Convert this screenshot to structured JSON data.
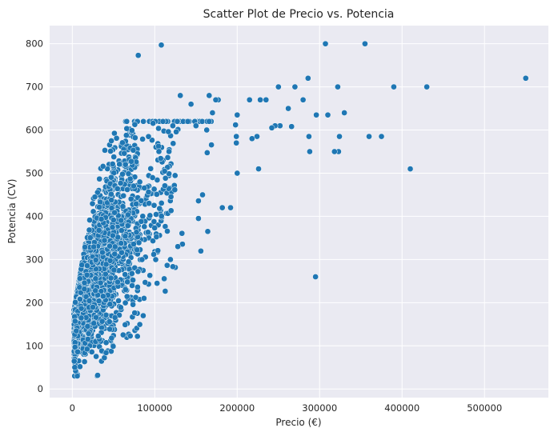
{
  "chart_data": {
    "type": "scatter",
    "title": "Scatter Plot de Precio vs. Potencia",
    "xlabel": "Precio (€)",
    "ylabel": "Potencia (CV)",
    "xlim": [
      -27500,
      577500
    ],
    "ylim": [
      -20,
      842
    ],
    "xticks": [
      0,
      100000,
      200000,
      300000,
      400000,
      500000
    ],
    "xtick_labels": [
      "0",
      "100000",
      "200000",
      "300000",
      "400000",
      "500000"
    ],
    "yticks": [
      0,
      100,
      200,
      300,
      400,
      500,
      600,
      700,
      800
    ],
    "ytick_labels": [
      "0",
      "100",
      "200",
      "300",
      "400",
      "500",
      "600",
      "700",
      "800"
    ],
    "grid": true,
    "colors": {
      "background": "#eaeaf2",
      "grid": "#ffffff",
      "point": "#1f77b4",
      "text": "#262626"
    },
    "points": [
      [
        550000,
        720
      ],
      [
        430000,
        700
      ],
      [
        390000,
        700
      ],
      [
        410000,
        510
      ],
      [
        375000,
        585
      ],
      [
        360000,
        585
      ],
      [
        355000,
        800
      ],
      [
        307000,
        800
      ],
      [
        330000,
        640
      ],
      [
        322000,
        700
      ],
      [
        324000,
        585
      ],
      [
        323000,
        550
      ],
      [
        318000,
        550
      ],
      [
        310000,
        635
      ],
      [
        296000,
        635
      ],
      [
        295000,
        260
      ],
      [
        286000,
        720
      ],
      [
        288000,
        550
      ],
      [
        287000,
        585
      ],
      [
        280000,
        670
      ],
      [
        270000,
        700
      ],
      [
        266000,
        608
      ],
      [
        262000,
        650
      ],
      [
        250000,
        700
      ],
      [
        252000,
        610
      ],
      [
        246000,
        610
      ],
      [
        242000,
        605
      ],
      [
        235000,
        670
      ],
      [
        228000,
        670
      ],
      [
        224000,
        585
      ],
      [
        226000,
        510
      ],
      [
        215000,
        670
      ],
      [
        218000,
        580
      ],
      [
        200000,
        635
      ],
      [
        199000,
        585
      ],
      [
        199000,
        570
      ],
      [
        198000,
        612
      ],
      [
        200000,
        500
      ],
      [
        192000,
        420
      ],
      [
        182000,
        420
      ],
      [
        177000,
        670
      ],
      [
        174000,
        670
      ],
      [
        170000,
        640
      ],
      [
        166000,
        680
      ],
      [
        163000,
        600
      ],
      [
        158000,
        450
      ],
      [
        150000,
        610
      ],
      [
        144000,
        660
      ],
      [
        131000,
        680
      ],
      [
        128000,
        330
      ],
      [
        122000,
        610
      ],
      [
        119000,
        300
      ],
      [
        108000,
        797
      ],
      [
        80000,
        773
      ],
      [
        79000,
        122
      ],
      [
        87000,
        210
      ],
      [
        41000,
        84
      ],
      [
        6000,
        30
      ],
      [
        4000,
        42
      ],
      [
        3000,
        50
      ]
    ]
  }
}
